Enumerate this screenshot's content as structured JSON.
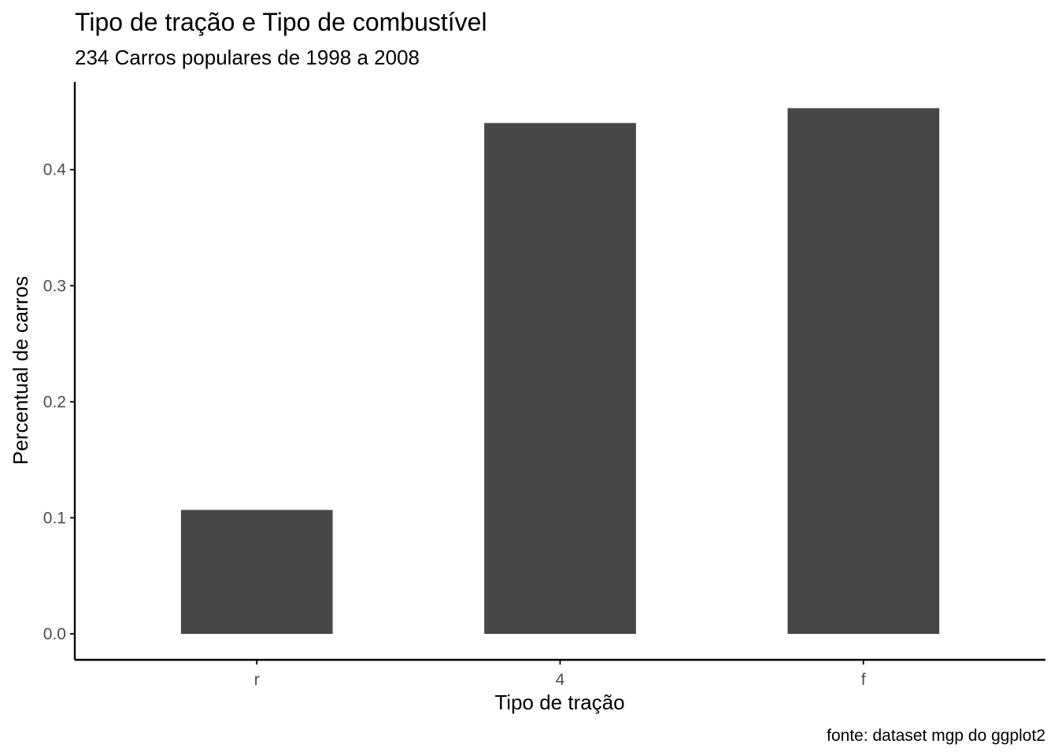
{
  "chart_data": {
    "type": "bar",
    "title": "Tipo de tração e Tipo de combustível",
    "subtitle": "234 Carros populares de 1998 a 2008",
    "xlabel": "Tipo de tração",
    "ylabel": "Percentual de carros",
    "caption": "fonte: dataset mgp do ggplot2",
    "categories": [
      "r",
      "4",
      "f"
    ],
    "values": [
      0.1068,
      0.4402,
      0.453
    ],
    "ylim": [
      -0.0224,
      0.4757
    ],
    "yticks": [
      0.0,
      0.1,
      0.2,
      0.3,
      0.4
    ],
    "ytick_labels": [
      "0.0",
      "0.1",
      "0.2",
      "0.3",
      "0.4"
    ],
    "grid": false,
    "bar_color": "#474747",
    "axis_color": "#000000",
    "tick_label_color": "#4d4d4d"
  }
}
